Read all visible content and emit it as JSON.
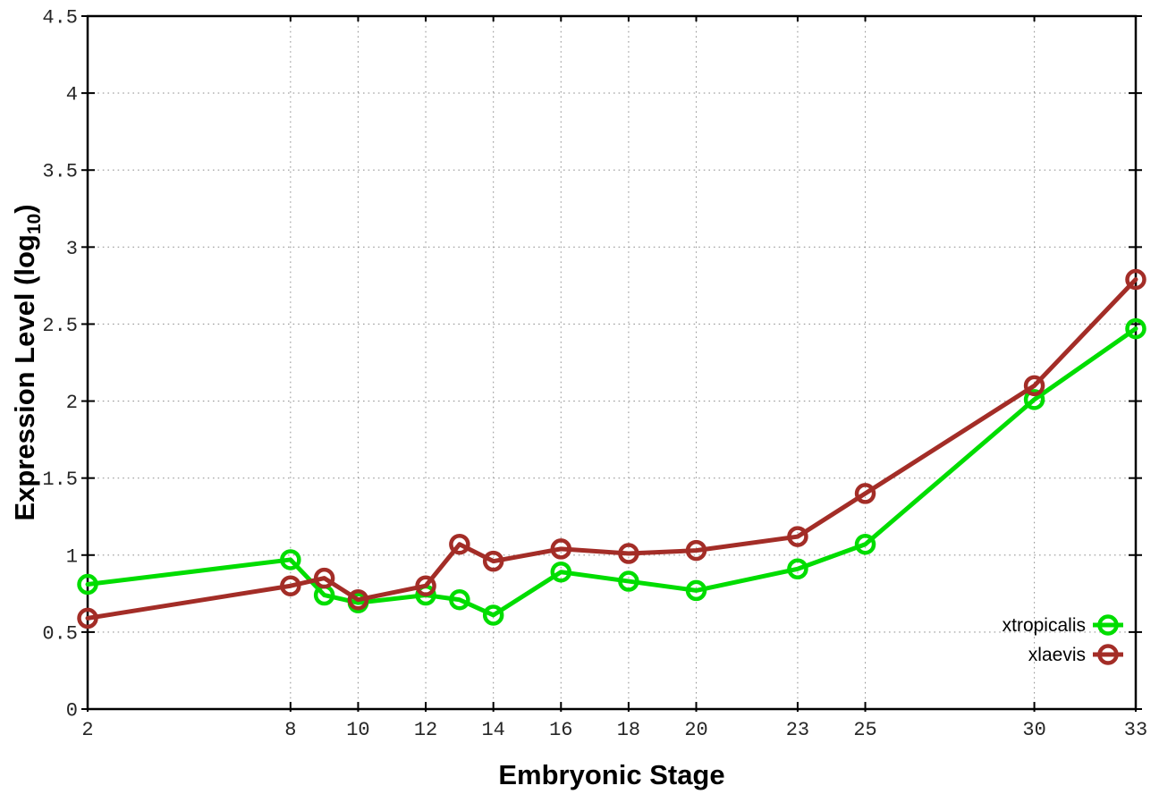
{
  "chart_data": {
    "type": "line",
    "title": "",
    "xlabel": "Embryonic Stage",
    "ylabel": "Expression Level (log10)",
    "ylabel_parts": {
      "main": "Expression Level (log",
      "sub": "10",
      "close": ")"
    },
    "x": [
      2,
      8,
      9,
      10,
      12,
      13,
      14,
      16,
      18,
      20,
      23,
      25,
      30,
      33
    ],
    "x_tick_labels": [
      "2",
      "8",
      "10",
      "12",
      "14",
      "16",
      "18",
      "20",
      "23",
      "25",
      "30",
      "33"
    ],
    "x_ticks": [
      2,
      8,
      10,
      12,
      14,
      16,
      18,
      20,
      23,
      25,
      30,
      33
    ],
    "y_ticks": [
      0,
      0.5,
      1,
      1.5,
      2,
      2.5,
      3,
      3.5,
      4,
      4.5
    ],
    "y_tick_labels": [
      "0",
      "0.5",
      "1",
      "1.5",
      "2",
      "2.5",
      "3",
      "3.5",
      "4",
      "4.5"
    ],
    "xlim": [
      2,
      33
    ],
    "ylim": [
      0,
      4.5
    ],
    "grid": true,
    "grid_color": "#999999",
    "axis_color": "#000000",
    "tick_label_color": "#262626",
    "legend_position": "inside-right-bottom",
    "series": [
      {
        "name": "xtropicalis",
        "color": "#00dd00",
        "marker": "open-circle",
        "values": [
          0.81,
          0.97,
          0.74,
          0.69,
          0.74,
          0.71,
          0.61,
          0.89,
          0.83,
          0.77,
          0.91,
          1.07,
          2.01,
          2.47
        ]
      },
      {
        "name": "xlaevis",
        "color": "#a32d27",
        "marker": "open-circle",
        "values": [
          0.59,
          0.8,
          0.85,
          0.71,
          0.8,
          1.07,
          0.96,
          1.04,
          1.01,
          1.03,
          1.12,
          1.4,
          2.1,
          2.79
        ]
      }
    ]
  }
}
